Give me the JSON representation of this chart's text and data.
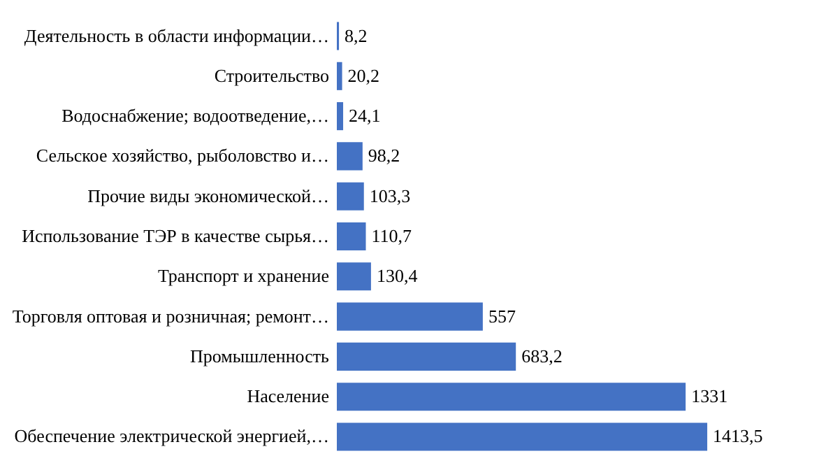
{
  "chart_data": {
    "type": "bar",
    "orientation": "horizontal",
    "categories": [
      "Деятельность в области информации…",
      "Строительство",
      "Водоснабжение; водоотведение,…",
      "Сельское хозяйство, рыболовство и…",
      "Прочие виды экономической…",
      "Использование ТЭР в качестве сырья…",
      "Транспорт и хранение",
      "Торговля оптовая и розничная; ремонт…",
      "Промышленность",
      "Население",
      "Обеспечение электрической энергией,…"
    ],
    "values": [
      8.2,
      20.2,
      24.1,
      98.2,
      103.3,
      110.7,
      130.4,
      557,
      683.2,
      1331,
      1413.5
    ],
    "value_labels": [
      "8,2",
      "20,2",
      "24,1",
      "98,2",
      "103,3",
      "110,7",
      "130,4",
      "557",
      "683,2",
      "1331",
      "1413,5"
    ],
    "color": "#4472c4",
    "grid": false
  }
}
